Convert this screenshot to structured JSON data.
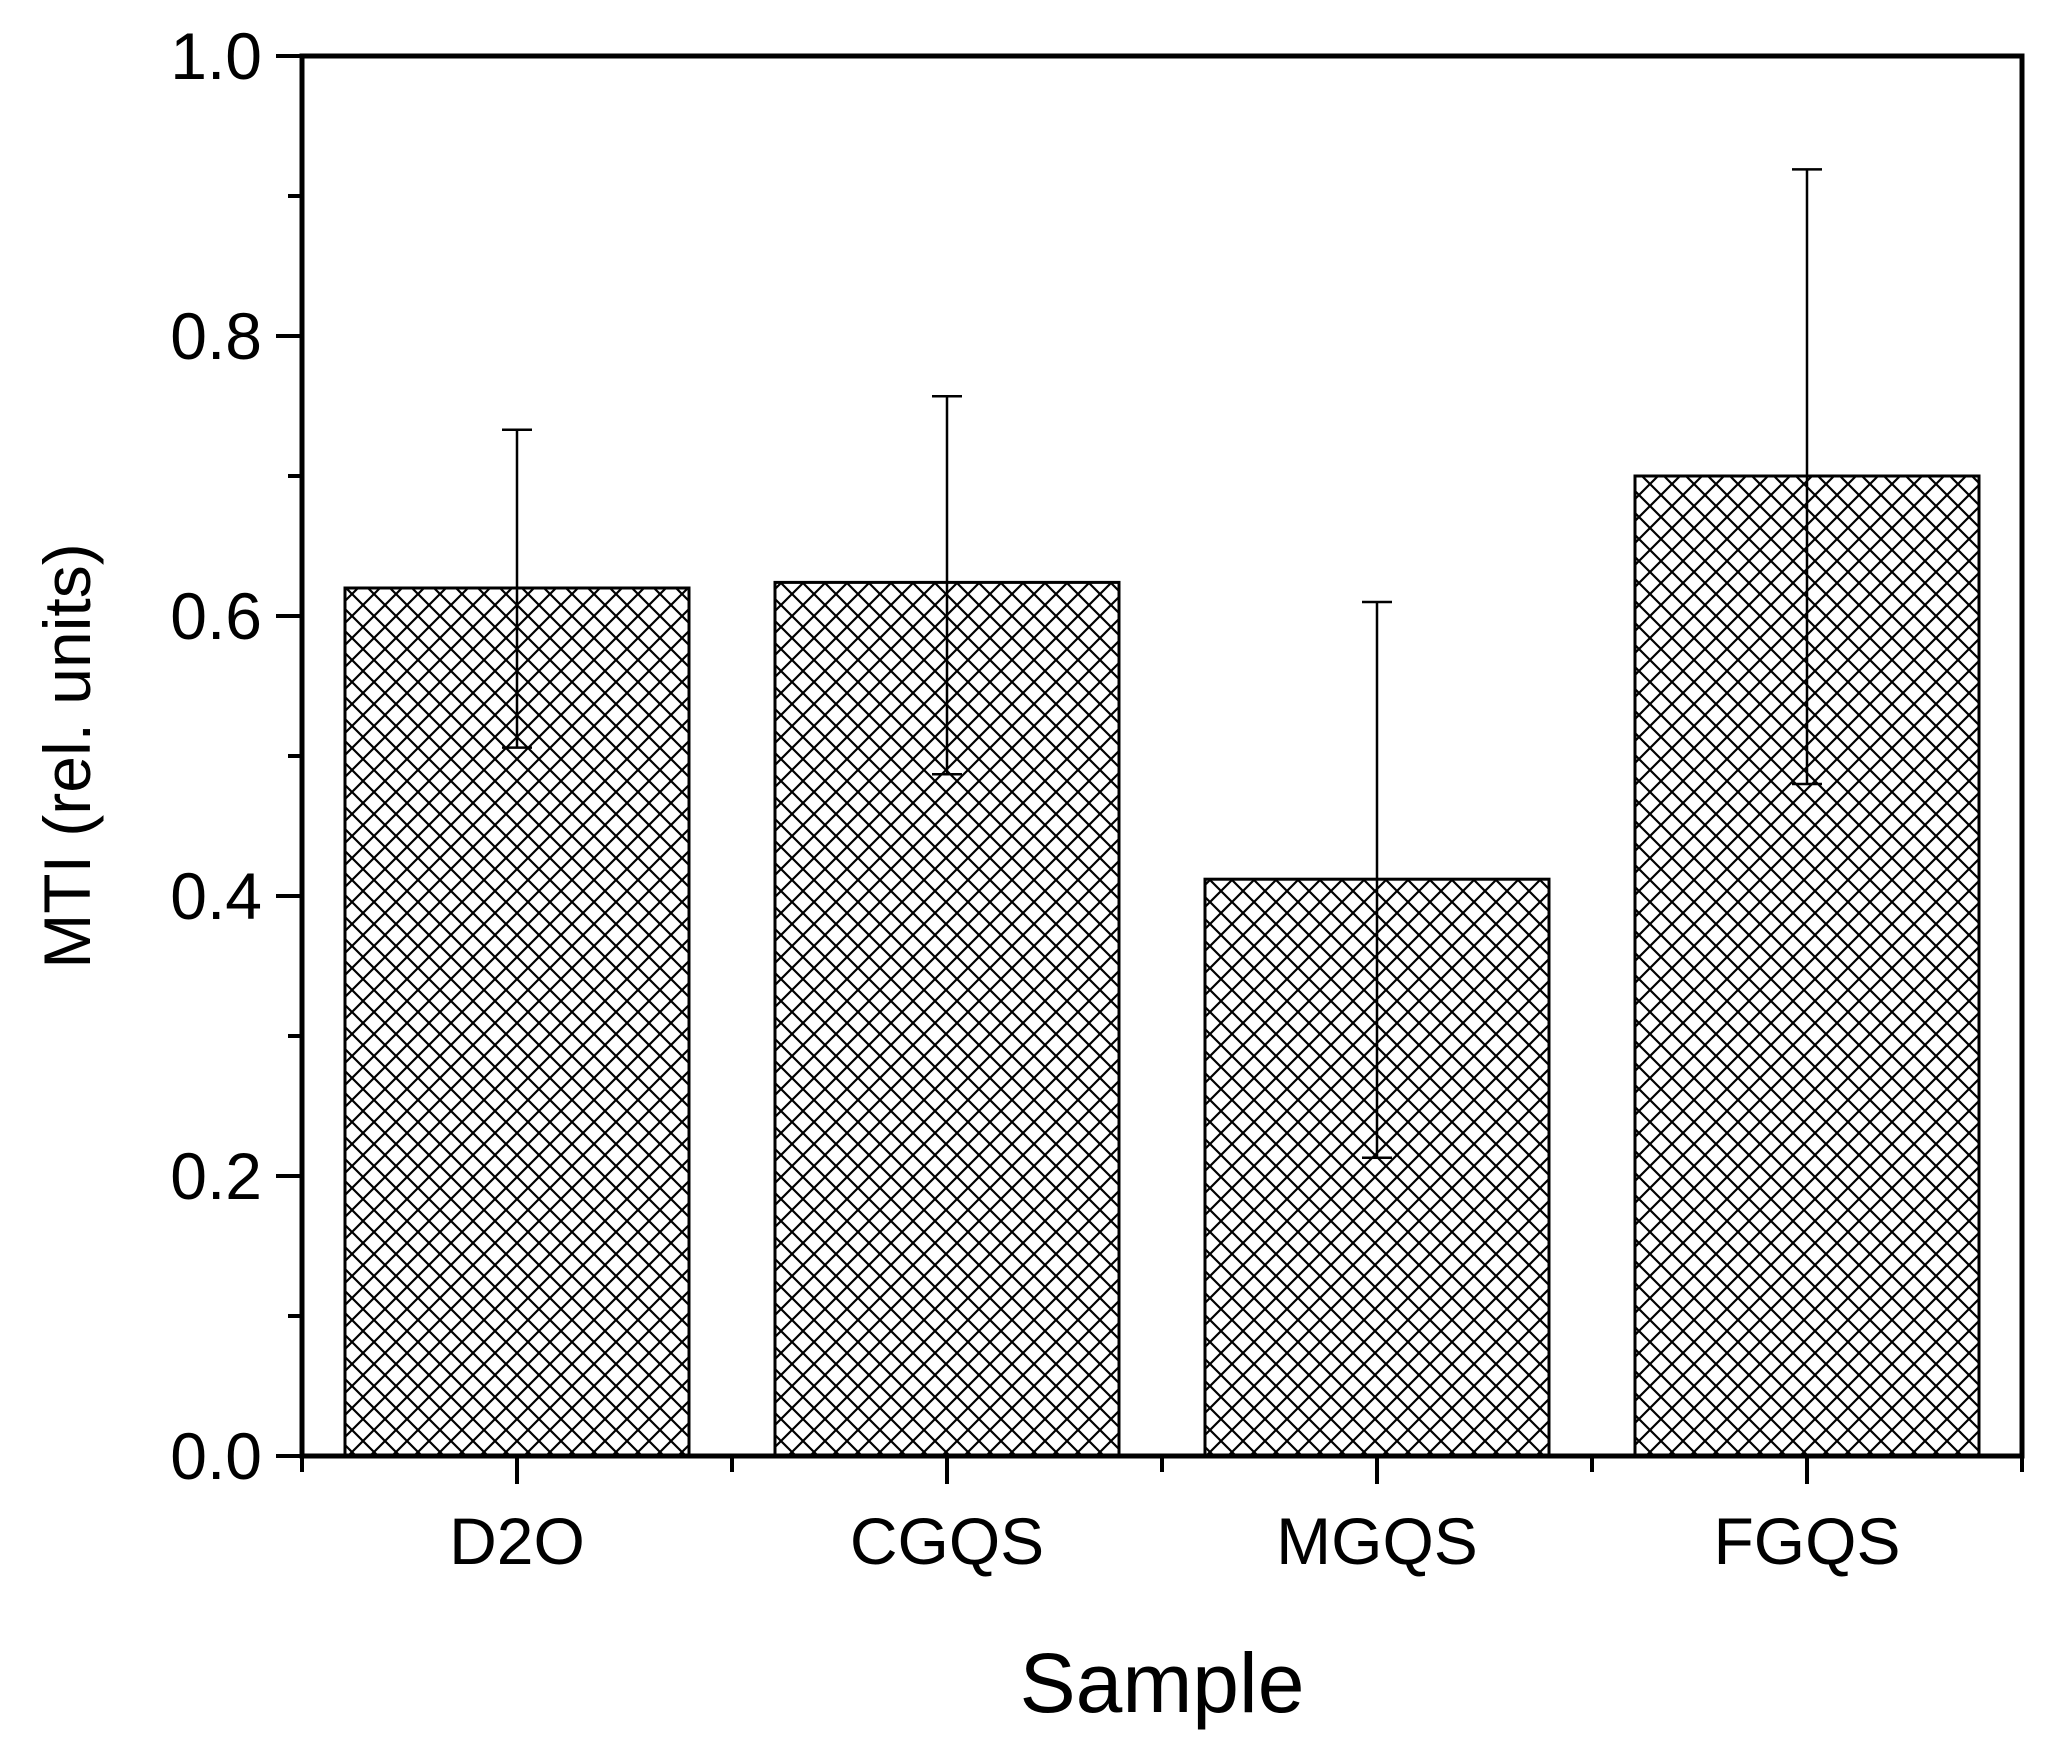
{
  "chart_data": {
    "type": "bar",
    "title": "",
    "xlabel": "Sample",
    "ylabel": "MTI (rel. units)",
    "categories": [
      "D2O",
      "CGQS",
      "MGQS",
      "FGQS"
    ],
    "values": [
      0.62,
      0.624,
      0.412,
      0.7
    ],
    "error_upper": [
      0.733,
      0.757,
      0.61,
      0.919
    ],
    "error_lower": [
      0.506,
      0.487,
      0.213,
      0.48
    ],
    "ylim": [
      0.0,
      1.0
    ],
    "y_ticks": [
      "0.0",
      "0.2",
      "0.4",
      "0.6",
      "0.8",
      "1.0"
    ],
    "y_tick_values": [
      0.0,
      0.2,
      0.4,
      0.6,
      0.8,
      1.0
    ],
    "bar_fill": "crosshatch",
    "colors": {
      "bar_edge": "#000000",
      "hatch": "#000000",
      "background": "#ffffff"
    },
    "grid": false,
    "legend": false
  }
}
